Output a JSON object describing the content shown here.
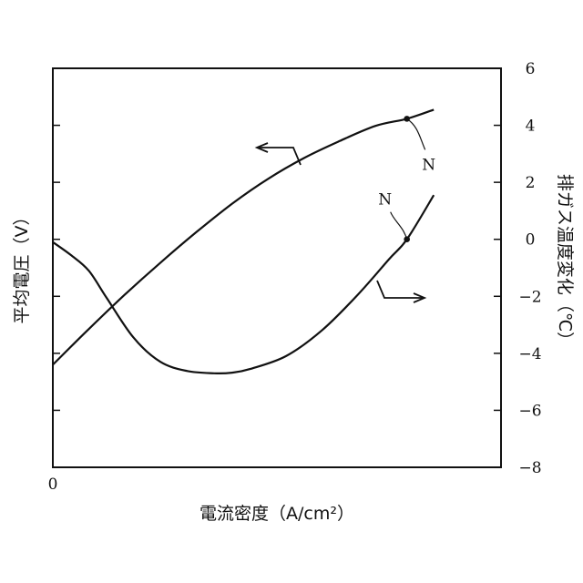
{
  "chart_data": {
    "type": "line",
    "xlabel": "電流密度（A/cm²）",
    "ylabel_left": "平均電圧（V）",
    "ylabel_right": "排ガス温度変化（℃）",
    "x_tick_labels": [
      "0"
    ],
    "y_right_ticks": [
      6,
      4,
      2,
      0,
      -2,
      -4,
      -6,
      -8
    ],
    "y_right_tick_labels": [
      "6",
      "4",
      "2",
      "0",
      "−2",
      "−4",
      "−6",
      "−8"
    ],
    "ylim_right": [
      -8,
      6
    ],
    "x_domain": [
      0,
      1
    ],
    "series": [
      {
        "axis": "left",
        "x": [
          0,
          0.08,
          0.16,
          0.24,
          0.32,
          0.4,
          0.48,
          0.56,
          0.64,
          0.72,
          0.79,
          0.85
        ],
        "values": [
          -4.4,
          -3.15,
          -1.95,
          -0.82,
          0.25,
          1.25,
          2.12,
          2.85,
          3.45,
          3.98,
          4.23,
          4.55
        ],
        "marker": {
          "label": "N",
          "x": 0.79,
          "value": 4.23
        }
      },
      {
        "axis": "right",
        "x": [
          0,
          0.04,
          0.08,
          0.12,
          0.18,
          0.24,
          0.3,
          0.36,
          0.4,
          0.44,
          0.52,
          0.6,
          0.68,
          0.75,
          0.79,
          0.85
        ],
        "values": [
          -0.1,
          -0.55,
          -1.1,
          -2.05,
          -3.45,
          -4.3,
          -4.62,
          -4.7,
          -4.68,
          -4.55,
          -4.1,
          -3.2,
          -1.95,
          -0.7,
          0.0,
          1.55
        ],
        "marker": {
          "label": "N",
          "x": 0.79,
          "value": 0.0
        }
      }
    ]
  }
}
